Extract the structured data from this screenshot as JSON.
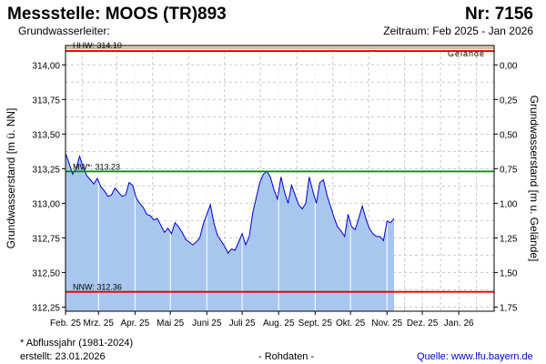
{
  "header": {
    "title": "Messstelle: MOOS (TR)893",
    "number": "Nr: 7156",
    "aquifer": "Grundwasserleiter:",
    "period": "Zeitraum: Feb 2025 - Jan 2026"
  },
  "footer": {
    "footnote": "* Abflussjahr (1981-2024)",
    "created": "erstellt:  23.01.2026",
    "raw": "- Rohdaten -",
    "source": "Quelle: www.lfu.bayern.de"
  },
  "colors": {
    "fill": "#a9c7ee",
    "line": "#0000cc",
    "hhw": "#e00000",
    "nnw": "#e00000",
    "mw": "#008800",
    "ground": "#b08f4a",
    "grid": "#c8c8c8"
  },
  "chart_data": {
    "type": "area",
    "ylabel": "Grundwasserstand [m ü. NN]",
    "y2label": "Grundwasserstand [m u. Gelände]",
    "ylim": [
      312.22,
      314.14
    ],
    "y_ticks": [
      312.25,
      312.5,
      312.75,
      313.0,
      313.25,
      313.5,
      313.75,
      314.0
    ],
    "y_tick_labels": [
      "312,25",
      "312,50",
      "312,75",
      "313,00",
      "313,25",
      "313,50",
      "313,75",
      "314,00"
    ],
    "y2_ground_level": 314.0,
    "y2_ticks": [
      0.0,
      0.25,
      0.5,
      0.75,
      1.0,
      1.25,
      1.5,
      1.75
    ],
    "y2_tick_labels": [
      "0,00",
      "0,25",
      "0,50",
      "0,75",
      "1,00",
      "1,25",
      "1,50",
      "1,75"
    ],
    "x_start": "2025-02-01",
    "x_end": "2026-01-31",
    "x_ticks": [
      "2025-02-01",
      "2025-03-01",
      "2025-04-01",
      "2025-05-01",
      "2025-06-01",
      "2025-07-01",
      "2025-08-01",
      "2025-09-01",
      "2025-10-01",
      "2025-11-01",
      "2025-12-01",
      "2026-01-01"
    ],
    "x_tick_labels": [
      "Feb. 25",
      "Mrz. 25",
      "Apr. 25",
      "Mai 25",
      "Juni 25",
      "Juli 25",
      "Aug. 25",
      "Sept. 25",
      "Okt. 25",
      "Nov. 25",
      "Dez. 25",
      "Jan. 26"
    ],
    "grid": true,
    "reference_lines": [
      {
        "name": "hhw",
        "label": "HHW: 314.10",
        "value": 314.1
      },
      {
        "name": "mw",
        "label": "MW*: 313.23",
        "value": 313.23
      },
      {
        "name": "nnw",
        "label": "NNW: 312.36",
        "value": 312.36
      }
    ],
    "ground_label": "Gelände",
    "series": [
      {
        "x": [
          "2025-02-01",
          "2025-02-04",
          "2025-02-07",
          "2025-02-10",
          "2025-02-13",
          "2025-02-16",
          "2025-02-19",
          "2025-02-22",
          "2025-02-25",
          "2025-02-28",
          "2025-03-03",
          "2025-03-06",
          "2025-03-09",
          "2025-03-12",
          "2025-03-15",
          "2025-03-18",
          "2025-03-21",
          "2025-03-24",
          "2025-03-27",
          "2025-03-30",
          "2025-04-02",
          "2025-04-05",
          "2025-04-08",
          "2025-04-11",
          "2025-04-14",
          "2025-04-17",
          "2025-04-20",
          "2025-04-23",
          "2025-04-26",
          "2025-04-29",
          "2025-05-02",
          "2025-05-05",
          "2025-05-08",
          "2025-05-11",
          "2025-05-14",
          "2025-05-17",
          "2025-05-20",
          "2025-05-23",
          "2025-05-26",
          "2025-05-29",
          "2025-06-01",
          "2025-06-04",
          "2025-06-07",
          "2025-06-10",
          "2025-06-13",
          "2025-06-16",
          "2025-06-19",
          "2025-06-22",
          "2025-06-25",
          "2025-06-28",
          "2025-07-01",
          "2025-07-04",
          "2025-07-07",
          "2025-07-10",
          "2025-07-13",
          "2025-07-16",
          "2025-07-19",
          "2025-07-22",
          "2025-07-25",
          "2025-07-28",
          "2025-07-31",
          "2025-08-03",
          "2025-08-06",
          "2025-08-09",
          "2025-08-12",
          "2025-08-15",
          "2025-08-18",
          "2025-08-21",
          "2025-08-24",
          "2025-08-27",
          "2025-08-30",
          "2025-09-02",
          "2025-09-05",
          "2025-09-08",
          "2025-09-11",
          "2025-09-14",
          "2025-09-17",
          "2025-09-20",
          "2025-09-23",
          "2025-09-26",
          "2025-09-29",
          "2025-10-02",
          "2025-10-05",
          "2025-10-08",
          "2025-10-11",
          "2025-10-14",
          "2025-10-17",
          "2025-10-20",
          "2025-10-23",
          "2025-10-26",
          "2025-10-29",
          "2025-11-01",
          "2025-11-04",
          "2025-11-07"
        ],
        "values": [
          313.36,
          313.29,
          313.21,
          313.25,
          313.34,
          313.26,
          313.2,
          313.17,
          313.14,
          313.18,
          313.12,
          313.09,
          313.05,
          313.06,
          313.11,
          313.08,
          313.05,
          313.06,
          313.15,
          313.13,
          313.04,
          313.0,
          312.97,
          312.92,
          312.91,
          312.88,
          312.89,
          312.84,
          312.79,
          312.82,
          312.78,
          312.86,
          312.83,
          312.79,
          312.74,
          312.72,
          312.7,
          312.72,
          312.75,
          312.85,
          312.92,
          312.99,
          312.86,
          312.77,
          312.73,
          312.69,
          312.64,
          312.67,
          312.66,
          312.72,
          312.78,
          312.7,
          312.76,
          312.93,
          313.04,
          313.15,
          313.21,
          313.23,
          313.19,
          313.1,
          313.03,
          313.19,
          313.08,
          313.0,
          313.13,
          313.06,
          312.99,
          312.96,
          313.0,
          313.19,
          313.09,
          313.0,
          313.15,
          313.17,
          313.06,
          312.98,
          312.9,
          312.83,
          312.8,
          312.76,
          312.92,
          312.83,
          312.81,
          312.89,
          312.98,
          312.89,
          312.82,
          312.78,
          312.76,
          312.76,
          312.73,
          312.87,
          312.86,
          312.89
        ]
      }
    ]
  }
}
